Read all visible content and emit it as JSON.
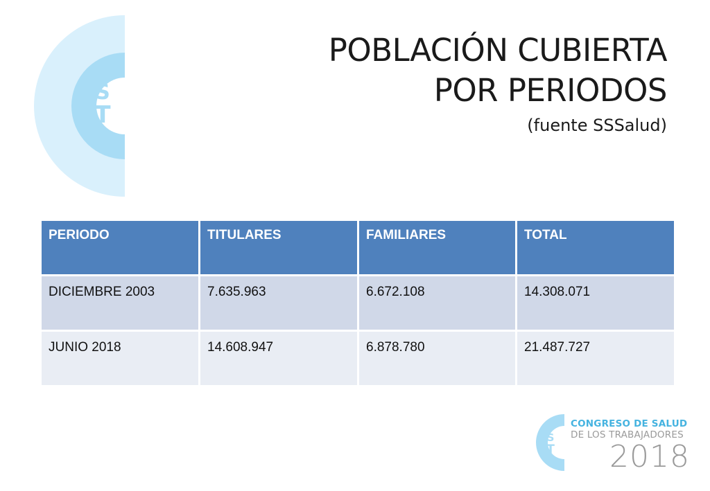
{
  "title": {
    "line1": "POBLACIÓN CUBIERTA",
    "line2": "POR PERIODOS",
    "subtitle": "(fuente SSSalud)"
  },
  "logo": {
    "letters": [
      "S",
      "T"
    ],
    "colors": {
      "outer": "#d9f0fc",
      "middle": "#a8dcf5",
      "inner": "#ffffff",
      "letters": "#a8dcf5"
    }
  },
  "table": {
    "headers": [
      "PERIODO",
      "TITULARES",
      "FAMILIARES",
      "TOTAL"
    ],
    "rows": [
      [
        "DICIEMBRE 2003",
        "7.635.963",
        "6.672.108",
        "14.308.071"
      ],
      [
        "JUNIO 2018",
        "14.608.947",
        "6.878.780",
        "21.487.727"
      ]
    ],
    "colors": {
      "header": "#4f81bd",
      "row_odd": "#d0d8e8",
      "row_even": "#e9edf4"
    }
  },
  "footer": {
    "line1": "CONGRESO DE SALUD",
    "line2": "DE LOS TRABAJADORES",
    "year": "2018",
    "colors": {
      "line1": "#45b3e0",
      "line2": "#9a9a9a"
    }
  }
}
